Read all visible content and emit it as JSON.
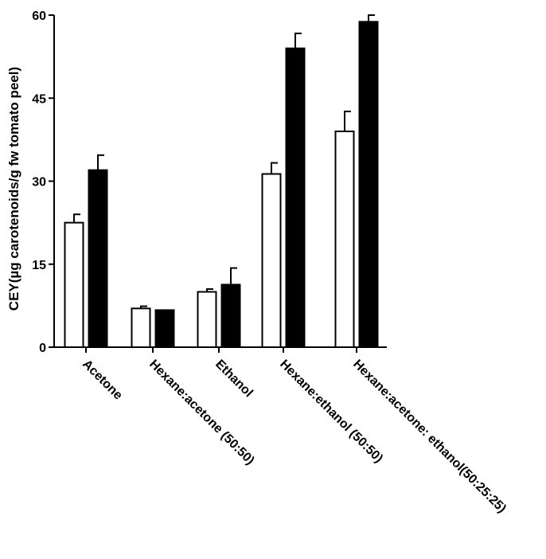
{
  "chart_data": {
    "type": "bar",
    "title": "",
    "xlabel": "",
    "ylabel": "CEY(µg carotenoids/g fw tomato peel)",
    "ylim": [
      0,
      60
    ],
    "yticks": [
      "0",
      "15",
      "30",
      "45",
      "60"
    ],
    "categories": [
      "Acetone",
      "Hexane:acetone (50:50)",
      "Ethanol",
      "Hexane:ethanol (50:50)",
      "Hexane:acetone: ethanol(50:25:25)"
    ],
    "series": [
      {
        "fill": "#ffffff",
        "values": [
          22.5,
          7.0,
          10.0,
          31.3,
          39.0
        ],
        "errors": [
          1.5,
          0.4,
          0.5,
          2.0,
          3.6
        ]
      },
      {
        "fill": "#000000",
        "values": [
          32.0,
          6.7,
          11.3,
          54.0,
          58.8
        ],
        "errors": [
          2.7,
          0.0,
          3.0,
          2.7,
          1.2
        ]
      }
    ],
    "grid": false,
    "legend": "none"
  }
}
